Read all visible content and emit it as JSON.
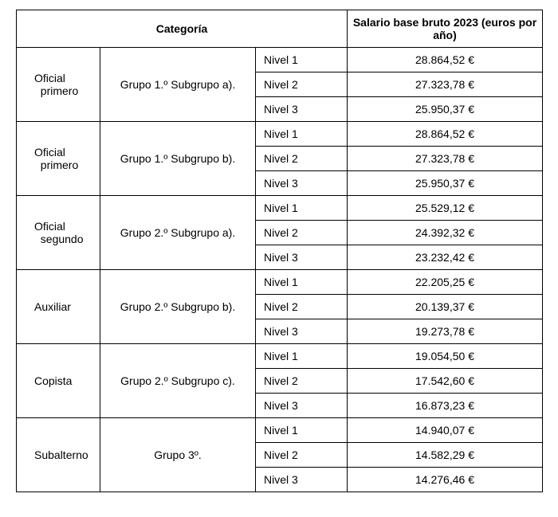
{
  "table": {
    "header": {
      "category": "Categoría",
      "salary": "Salario base bruto 2023 (euros por año)"
    },
    "groups": [
      {
        "category": "Oficial primero",
        "group": "Grupo 1.º Subgrupo a).",
        "levels": [
          {
            "name": "Nivel 1",
            "salary": "28.864,52 €"
          },
          {
            "name": "Nivel 2",
            "salary": "27.323,78 €"
          },
          {
            "name": "Nivel 3",
            "salary": "25.950,37 €"
          }
        ]
      },
      {
        "category": "Oficial primero",
        "group": "Grupo 1.º Subgrupo b).",
        "levels": [
          {
            "name": "Nivel 1",
            "salary": "28.864,52 €"
          },
          {
            "name": "Nivel 2",
            "salary": "27.323,78 €"
          },
          {
            "name": "Nivel 3",
            "salary": "25.950,37 €"
          }
        ]
      },
      {
        "category": "Oficial segundo",
        "group": "Grupo 2.º Subgrupo a).",
        "levels": [
          {
            "name": "Nivel 1",
            "salary": "25.529,12 €"
          },
          {
            "name": "Nivel 2",
            "salary": "24.392,32 €"
          },
          {
            "name": "Nivel 3",
            "salary": "23.232,42 €"
          }
        ]
      },
      {
        "category": "Auxiliar",
        "group": "Grupo 2.º Subgrupo b).",
        "levels": [
          {
            "name": "Nivel 1",
            "salary": "22.205,25 €"
          },
          {
            "name": "Nivel 2",
            "salary": "20.139,37 €"
          },
          {
            "name": "Nivel 3",
            "salary": "19.273,78 €"
          }
        ]
      },
      {
        "category": "Copista",
        "group": "Grupo 2.º Subgrupo c).",
        "levels": [
          {
            "name": "Nivel 1",
            "salary": "19.054,50 €"
          },
          {
            "name": "Nivel 2",
            "salary": "17.542,60 €"
          },
          {
            "name": "Nivel 3",
            "salary": "16.873,23 €"
          }
        ]
      },
      {
        "category": "Subalterno",
        "group": "Grupo 3º.",
        "levels": [
          {
            "name": "Nivel 1",
            "salary": "14.940,07 €"
          },
          {
            "name": "Nivel 2",
            "salary": "14.582,29 €"
          },
          {
            "name": "Nivel 3",
            "salary": "14.276,46 €"
          }
        ]
      }
    ]
  }
}
